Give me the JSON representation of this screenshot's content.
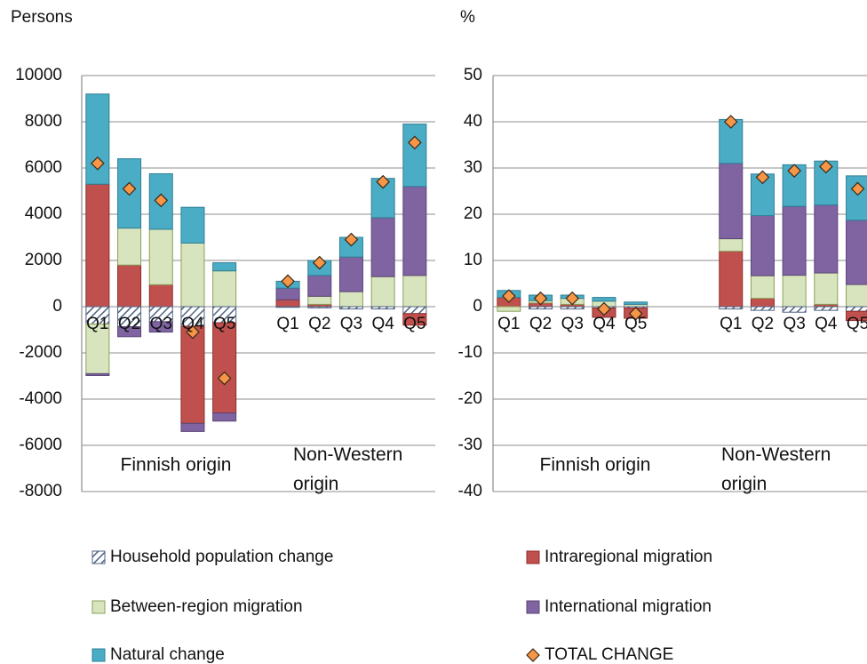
{
  "chart_data": {
    "type": "bar",
    "stacked": true,
    "series": [
      {
        "name": "Household population change",
        "color": "#ffffff",
        "pattern": "hatch"
      },
      {
        "name": "Intraregional migration",
        "color": "#c0504d"
      },
      {
        "name": "Between-region migration",
        "color": "#d7e4bd"
      },
      {
        "name": "International migration",
        "color": "#8064a2"
      },
      {
        "name": "Natural change",
        "color": "#4bacc6"
      },
      {
        "name": "TOTAL CHANGE",
        "color": "#f79646",
        "marker": "diamond"
      }
    ],
    "panels": [
      {
        "ylabel": "Persons",
        "ylim": [
          -8000,
          10000
        ],
        "yticks": [
          -8000,
          -6000,
          -4000,
          -2000,
          0,
          2000,
          4000,
          6000,
          8000,
          10000
        ],
        "groups": [
          "Finnish origin",
          "Non-Western origin"
        ],
        "categories": [
          "Q1",
          "Q2",
          "Q3",
          "Q4",
          "Q5",
          "Q1",
          "Q2",
          "Q3",
          "Q4",
          "Q5"
        ],
        "values": [
          [
            -750,
            -870,
            -650,
            -850,
            -700,
            -30,
            -50,
            -100,
            -100,
            -300
          ],
          [
            5300,
            1800,
            950,
            -4200,
            -3900,
            300,
            100,
            0,
            0,
            -500
          ],
          [
            -2150,
            1600,
            2400,
            2750,
            1550,
            0,
            350,
            650,
            1300,
            1350
          ],
          [
            -80,
            -430,
            -450,
            -350,
            -350,
            500,
            900,
            1500,
            2550,
            3850
          ],
          [
            3900,
            3000,
            2400,
            1550,
            350,
            300,
            650,
            850,
            1700,
            2700
          ],
          [
            6200,
            5100,
            4600,
            -1100,
            -3100,
            1100,
            1900,
            2900,
            5400,
            7100
          ]
        ]
      },
      {
        "ylabel": "%",
        "ylim": [
          -40,
          50
        ],
        "yticks": [
          -40,
          -30,
          -20,
          -10,
          0,
          10,
          20,
          30,
          40,
          50
        ],
        "groups": [
          "Finnish origin",
          "Non-Western origin"
        ],
        "categories": [
          "Q1",
          "Q2",
          "Q3",
          "Q4",
          "Q5",
          "Q1",
          "Q2",
          "Q3",
          "Q4",
          "Q5"
        ],
        "values": [
          [
            0,
            -0.5,
            -0.5,
            -0.3,
            -0.3,
            -0.5,
            -0.8,
            -1.2,
            -0.8,
            -1
          ],
          [
            2,
            0.8,
            0.5,
            -2,
            -2.2,
            12,
            1.8,
            0,
            0.5,
            -2
          ],
          [
            -1,
            0.5,
            1.3,
            1.2,
            0.5,
            2.7,
            4.9,
            6.8,
            6.8,
            4.8
          ],
          [
            0,
            0,
            0,
            0,
            0,
            16.3,
            13,
            14.9,
            14.7,
            13.9
          ],
          [
            1.5,
            1.2,
            0.7,
            0.8,
            0.5,
            9.5,
            9,
            9,
            9.5,
            9.6
          ],
          [
            2.3,
            1.8,
            1.8,
            -0.5,
            -1.5,
            40,
            28,
            29.4,
            30.3,
            25.5
          ]
        ]
      }
    ]
  }
}
